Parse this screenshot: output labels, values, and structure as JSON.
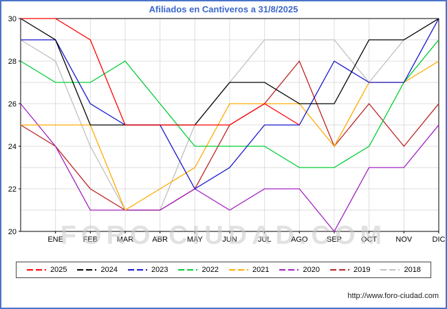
{
  "watermark": "FORO-CIUDAD.COM",
  "footer_url": "http://www.foro-ciudad.com",
  "colors": {
    "frame_border": "#4a73c9",
    "title": "#3b66cc",
    "grid": "#dcdcdc",
    "axis": "#000000"
  },
  "chart_data": {
    "type": "line",
    "title": "Afiliados en Cantiveros a 31/8/2025",
    "x_labels": [
      "ENE",
      "FEB",
      "MAR",
      "ABR",
      "MAY",
      "JUN",
      "JUL",
      "AGO",
      "SEP",
      "OCT",
      "NOV",
      "DIC"
    ],
    "x_layout": "13 points per series: index 0 sits at the left plot edge (start of year), indices 1-12 align with the month tick labels",
    "ylim": [
      20,
      30
    ],
    "yticks": [
      20,
      22,
      24,
      26,
      28,
      30
    ],
    "grid": true,
    "legend_position": "bottom",
    "series": [
      {
        "name": "2025",
        "color": "#ff0000",
        "values": [
          30,
          30,
          29,
          25,
          25,
          25,
          25,
          26,
          25,
          null,
          null,
          null,
          null
        ]
      },
      {
        "name": "2024",
        "color": "#000000",
        "values": [
          30,
          29,
          25,
          25,
          25,
          25,
          27,
          27,
          26,
          26,
          29,
          29,
          30
        ]
      },
      {
        "name": "2023",
        "color": "#1515cc",
        "values": [
          29,
          29,
          26,
          25,
          25,
          22,
          23,
          25,
          25,
          28,
          27,
          27,
          30
        ]
      },
      {
        "name": "2022",
        "color": "#00cc33",
        "values": [
          28,
          27,
          27,
          28,
          26,
          24,
          24,
          24,
          23,
          23,
          24,
          27,
          29
        ]
      },
      {
        "name": "2021",
        "color": "#ffaa00",
        "values": [
          25,
          25,
          25,
          21,
          22,
          23,
          26,
          26,
          26,
          24,
          27,
          27,
          28
        ]
      },
      {
        "name": "2020",
        "color": "#a020c0",
        "values": [
          26,
          24,
          21,
          21,
          21,
          22,
          21,
          22,
          22,
          20,
          23,
          23,
          25
        ]
      },
      {
        "name": "2019",
        "color": "#bb2222",
        "values": [
          25,
          24,
          22,
          21,
          21,
          22,
          25,
          26,
          28,
          24,
          26,
          24,
          26
        ]
      },
      {
        "name": "2018",
        "color": "#bfbfbf",
        "values": [
          29,
          28,
          24,
          21,
          21,
          25,
          27,
          29,
          29,
          29,
          27,
          29,
          30
        ]
      }
    ]
  }
}
